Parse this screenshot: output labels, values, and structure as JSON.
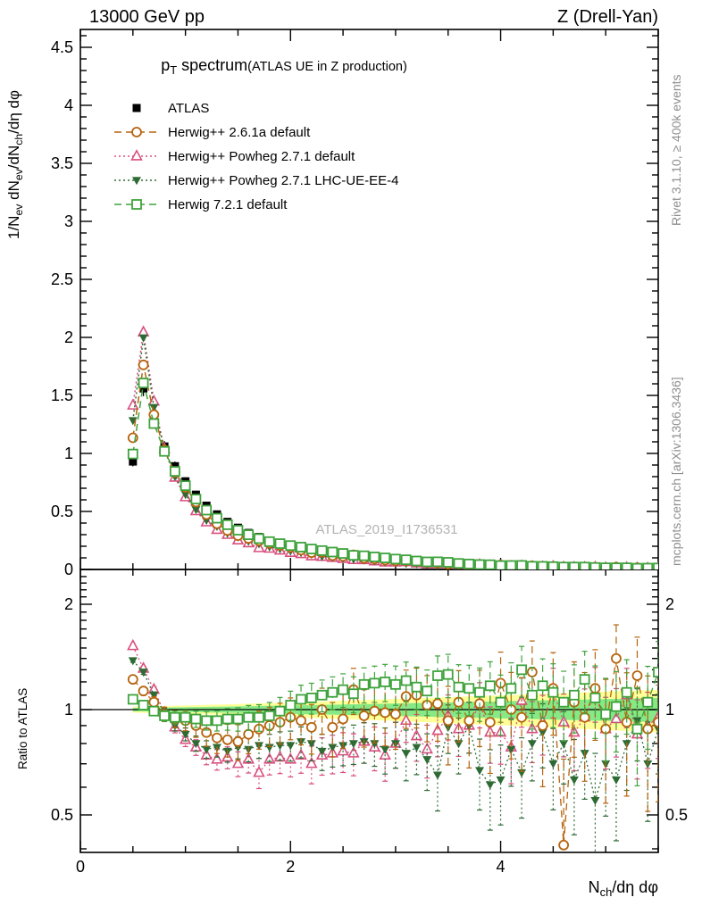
{
  "header": {
    "left": "13000 GeV pp",
    "right": "Z (Drell-Yan)"
  },
  "title": {
    "main": "p_{T} spectrum",
    "paren": "(ATLAS UE in Z production)"
  },
  "watermark": "ATLAS_2019_I1736531",
  "side_notes": {
    "top": "Rivet 3.1.10, ≥ 400k events",
    "bottom": "mcplots.cern.ch [arXiv:1306.3436]"
  },
  "colors": {
    "black": "#000000",
    "orange": "#b5640d",
    "pink": "#d94f7f",
    "dark_green": "#2e6b34",
    "green": "#3fa33d",
    "band_yellow": "#ffff99",
    "band_green": "#86e986",
    "gray_text": "#8e8e8e",
    "watermark_gray": "#b3b3b3"
  },
  "chart_data": {
    "type": "line",
    "title": "p_T spectrum (ATLAS UE in Z production)",
    "xlabel": "N_{ch}/dη dφ",
    "ylabel": "1/N_{ev} dN_{ev}/dN_{ch}/dη dφ",
    "xlim": [
      0,
      5.5
    ],
    "ylim_main": [
      0,
      4.65
    ],
    "x_major_ticks": [
      0,
      2,
      4
    ],
    "x_minor_step": 0.5,
    "y_major_step": 0.5,
    "y_minor_step": 0.1,
    "y_tick_labels": [
      "0",
      "0.5",
      "1",
      "1.5",
      "2",
      "2.5",
      "3",
      "3.5",
      "4",
      "4.5"
    ],
    "grid": false,
    "legend_position": "top-left",
    "ratio": {
      "ylabel": "Ratio to ATLAS",
      "yscale": "log",
      "ylim": [
        0.39,
        2.56
      ],
      "ticks": [
        "0.5",
        "1",
        "2"
      ],
      "tick_values": [
        0.5,
        1,
        2
      ]
    },
    "x": [
      0.5,
      0.6,
      0.7,
      0.8,
      0.9,
      1.0,
      1.1,
      1.2,
      1.3,
      1.4,
      1.5,
      1.6,
      1.7,
      1.8,
      1.9,
      2.0,
      2.1,
      2.2,
      2.3,
      2.4,
      2.5,
      2.6,
      2.7,
      2.8,
      2.9,
      3.0,
      3.1,
      3.2,
      3.3,
      3.4,
      3.5,
      3.6,
      3.7,
      3.8,
      3.9,
      4.0,
      4.1,
      4.2,
      4.3,
      4.4,
      4.5,
      4.6,
      4.7,
      4.8,
      4.9,
      5.0,
      5.1,
      5.2,
      5.3,
      5.4,
      5.5
    ],
    "series": [
      {
        "name": "ATLAS",
        "marker": "filled-square",
        "line": "none",
        "color": "#000000",
        "values": [
          0.93,
          1.56,
          1.27,
          1.06,
          0.89,
          0.76,
          0.645,
          0.55,
          0.475,
          0.41,
          0.36,
          0.315,
          0.28,
          0.25,
          0.225,
          0.2,
          0.18,
          0.163,
          0.148,
          0.134,
          0.121,
          0.11,
          0.1,
          0.091,
          0.083,
          0.076,
          0.069,
          0.063,
          0.058,
          0.053,
          0.049,
          0.045,
          0.041,
          0.038,
          0.035,
          0.032,
          0.03,
          0.027,
          0.025,
          0.023,
          0.022,
          0.02,
          0.019,
          0.017,
          0.016,
          0.015,
          0.014,
          0.013,
          0.012,
          0.011,
          0.01
        ],
        "ratio": [
          1,
          1,
          1,
          1,
          1,
          1,
          1,
          1,
          1,
          1,
          1,
          1,
          1,
          1,
          1,
          1,
          1,
          1,
          1,
          1,
          1,
          1,
          1,
          1,
          1,
          1,
          1,
          1,
          1,
          1,
          1,
          1,
          1,
          1,
          1,
          1,
          1,
          1,
          1,
          1,
          1,
          1,
          1,
          1,
          1,
          1,
          1,
          1,
          1,
          1,
          1
        ],
        "err_scale": 0.25
      },
      {
        "name": "Herwig++ 2.6.1a default",
        "marker": "open-circle",
        "line": "dashed",
        "color": "#b5640d",
        "ratio": [
          1.22,
          1.13,
          1.05,
          0.97,
          0.94,
          0.93,
          0.9,
          0.86,
          0.83,
          0.82,
          0.81,
          0.85,
          0.88,
          0.9,
          0.92,
          0.95,
          0.93,
          0.89,
          1.0,
          0.89,
          0.94,
          1.14,
          0.96,
          0.99,
          0.98,
          0.97,
          1.09,
          1.1,
          1.03,
          1.04,
          0.93,
          1.05,
          0.93,
          1.04,
          0.92,
          1.19,
          1.0,
          0.95,
          1.28,
          0.9,
          1.15,
          0.41,
          1.05,
          0.95,
          1.15,
          0.88,
          1.4,
          0.92,
          1.25,
          0.88,
          0.92
        ],
        "err_scale": 1.25
      },
      {
        "name": "Herwig++ Powheg 2.7.1 default",
        "marker": "open-triangle-up",
        "line": "dotted",
        "color": "#d94f7f",
        "ratio": [
          1.52,
          1.31,
          1.14,
          0.98,
          0.89,
          0.82,
          0.78,
          0.74,
          0.72,
          0.73,
          0.7,
          0.72,
          0.66,
          0.72,
          0.73,
          0.72,
          0.74,
          0.7,
          0.74,
          0.75,
          0.76,
          0.75,
          0.81,
          0.78,
          0.74,
          0.8,
          0.93,
          0.84,
          0.77,
          0.87,
          0.96,
          0.88,
          0.9,
          1.04,
          0.86,
          0.86,
          0.78,
          1.06,
          0.88,
          0.92,
          1.13,
          0.92,
          0.86,
          0.95,
          1.12,
          0.88,
          0.94,
          1.1,
          0.85,
          0.9,
          0.95
        ],
        "err_scale": 0.75
      },
      {
        "name": "Herwig++ Powheg 2.7.1 LHC-UE-EE-4",
        "marker": "filled-triangle-down",
        "line": "dotted",
        "color": "#2e6b34",
        "ratio": [
          1.38,
          1.28,
          1.1,
          0.98,
          0.9,
          0.85,
          0.8,
          0.77,
          0.78,
          0.76,
          0.78,
          0.77,
          0.79,
          0.78,
          0.79,
          0.79,
          0.81,
          0.8,
          0.76,
          0.78,
          0.79,
          0.8,
          0.81,
          0.8,
          0.77,
          0.8,
          0.75,
          0.78,
          0.72,
          0.65,
          0.89,
          0.8,
          0.9,
          0.67,
          0.61,
          0.63,
          0.77,
          0.66,
          0.8,
          0.86,
          0.7,
          0.8,
          0.63,
          0.75,
          0.55,
          0.7,
          0.63,
          0.8,
          0.93,
          0.7,
          0.88
        ],
        "err_scale": 0.75
      },
      {
        "name": "Herwig 7.2.1 default",
        "marker": "open-square",
        "line": "dashed",
        "color": "#3fa33d",
        "ratio": [
          1.07,
          1.03,
          0.99,
          0.96,
          0.95,
          0.95,
          0.94,
          0.93,
          0.93,
          0.94,
          0.94,
          0.95,
          0.95,
          0.96,
          0.99,
          1.03,
          1.07,
          1.08,
          1.1,
          1.12,
          1.14,
          1.11,
          1.18,
          1.19,
          1.2,
          1.18,
          1.21,
          1.16,
          1.13,
          1.25,
          1.26,
          1.16,
          1.15,
          1.12,
          1.17,
          1.05,
          1.15,
          1.3,
          1.1,
          1.17,
          1.12,
          1.05,
          1.1,
          1.22,
          1.08,
          0.97,
          1.02,
          1.12,
          0.88,
          1.05,
          1.28
        ],
        "err_scale": 0.95
      }
    ],
    "ratio_err_model": {
      "base": 0.02,
      "per_bin": 0.0056
    },
    "band": {
      "x_start": 0.5,
      "x_end": 5.5,
      "yellow_halfwidth_start": 0.02,
      "yellow_halfwidth_end": 0.14,
      "power": 1.2,
      "green_fraction": 0.57
    }
  }
}
